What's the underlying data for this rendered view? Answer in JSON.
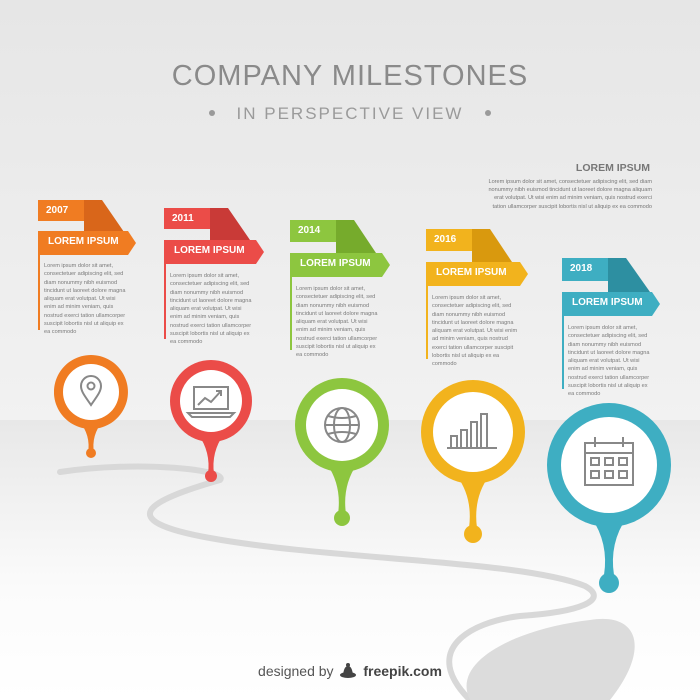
{
  "title": "COMPANY MILESTONES",
  "subtitle": "IN PERSPECTIVE VIEW",
  "top_note": {
    "heading": "LOREM IPSUM",
    "body": "Lorem ipsum dolor sit amet, consectetuer adipiscing elit, sed diam nonummy nibh euismod tincidunt ut laoreet dolore magna aliquam erat volutpat. Ut wisi enim ad minim veniam, quis nostrud exerci tation ullamcorper suscipit lobortis nisl ut aliquip ex ea commodo"
  },
  "colors": {
    "orange": "#f07c22",
    "red": "#eb4c48",
    "green": "#8dc63f",
    "yellow": "#f2b31d",
    "teal": "#3eaec2"
  },
  "milestones": [
    {
      "year": "2007",
      "label": "LOREM IPSUM",
      "icon": "location-pin-icon",
      "color": "#f07c22",
      "text": "Lorem ipsum dolor sit amet, consectetuer adipiscing elit, sed diam nonummy nibh euismod tincidunt ut laoreet dolore magna aliquam erat volutpat. Ut wisi enim ad minim veniam, quis nostrud exerci tation ullamcorper suscipit lobortis nisl ut aliquip ex ea commodo"
    },
    {
      "year": "2011",
      "label": "LOREM IPSUM",
      "icon": "laptop-chart-icon",
      "color": "#eb4c48",
      "text": "Lorem ipsum dolor sit amet, consectetuer adipiscing elit, sed diam nonummy nibh euismod tincidunt ut laoreet dolore magna aliquam erat volutpat. Ut wisi enim ad minim veniam, quis nostrud exerci tation ullamcorper suscipit lobortis nisl ut aliquip ex ea commodo"
    },
    {
      "year": "2014",
      "label": "LOREM IPSUM",
      "icon": "globe-icon",
      "color": "#8dc63f",
      "text": "Lorem ipsum dolor sit amet, consectetuer adipiscing elit, sed diam nonummy nibh euismod tincidunt ut laoreet dolore magna aliquam erat volutpat. Ut wisi enim ad minim veniam, quis nostrud exerci tation ullamcorper suscipit lobortis nisl ut aliquip ex ea commodo"
    },
    {
      "year": "2016",
      "label": "LOREM IPSUM",
      "icon": "bar-chart-icon",
      "color": "#f2b31d",
      "text": "Lorem ipsum dolor sit amet, consectetuer adipiscing elit, sed diam nonummy nibh euismod tincidunt ut laoreet dolore magna aliquam erat volutpat. Ut wisi enim ad minim veniam, quis nostrud exerci tation ullamcorper suscipit lobortis nisl ut aliquip ex ea commodo"
    },
    {
      "year": "2018",
      "label": "LOREM IPSUM",
      "icon": "calendar-icon",
      "color": "#3eaec2",
      "text": "Lorem ipsum dolor sit amet, consectetuer adipiscing elit, sed diam nonummy nibh euismod tincidunt ut laoreet dolore magna aliquam erat volutpat. Ut wisi enim ad minim veniam, quis nostrud exerci tation ullamcorper suscipit lobortis nisl ut aliquip ex ea commodo"
    }
  ],
  "footer": {
    "prefix": "designed by",
    "brand": "freepik.com",
    "icon": "freepik-hat-icon"
  }
}
